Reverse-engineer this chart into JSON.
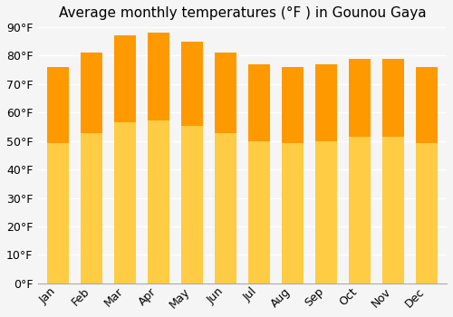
{
  "title": "Average monthly temperatures (°F ) in Gounou Gaya",
  "months": [
    "Jan",
    "Feb",
    "Mar",
    "Apr",
    "May",
    "Jun",
    "Jul",
    "Aug",
    "Sep",
    "Oct",
    "Nov",
    "Dec"
  ],
  "values": [
    76,
    81,
    87,
    88,
    85,
    81,
    77,
    76,
    77,
    79,
    79,
    76
  ],
  "bar_color_top": "#FFA500",
  "bar_color_bottom": "#FFD966",
  "ylim": [
    0,
    90
  ],
  "yticks": [
    0,
    10,
    20,
    30,
    40,
    50,
    60,
    70,
    80,
    90
  ],
  "ytick_labels": [
    "0°F",
    "10°F",
    "20°F",
    "30°F",
    "40°F",
    "50°F",
    "60°F",
    "70°F",
    "80°F",
    "90°F"
  ],
  "background_color": "#f5f5f5",
  "grid_color": "#ffffff",
  "title_fontsize": 11,
  "tick_fontsize": 9,
  "bar_edge_color": "none"
}
